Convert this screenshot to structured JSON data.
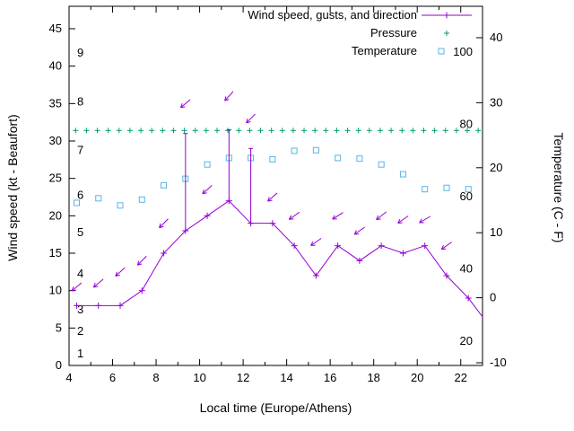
{
  "chart_data": {
    "type": "line",
    "title": "",
    "xlabel": "Local time (Europe/Athens)",
    "ylabel_left": "Wind speed (kt - Beaufort)",
    "ylabel_right": "Temperature (C - F)",
    "x_axis": {
      "min": 4,
      "max": 23,
      "major_ticks": [
        4,
        6,
        8,
        10,
        12,
        14,
        16,
        18,
        20,
        22
      ],
      "minor_step": 1
    },
    "y_left": {
      "min": 0,
      "max": 48,
      "ticks": [
        0,
        5,
        10,
        15,
        20,
        25,
        30,
        35,
        40,
        45
      ]
    },
    "y_right": {
      "ticks_c": [
        -10,
        0,
        10,
        20,
        30,
        40
      ],
      "fahrenheit_inline_labels": [
        20,
        40,
        60,
        80,
        100
      ]
    },
    "beaufort_inline_labels": [
      {
        "bft": 1,
        "kt": 1.3
      },
      {
        "bft": 2,
        "kt": 4.3
      },
      {
        "bft": 3,
        "kt": 7.2
      },
      {
        "bft": 4,
        "kt": 12
      },
      {
        "bft": 5,
        "kt": 17.5
      },
      {
        "bft": 6,
        "kt": 22.5
      },
      {
        "bft": 7,
        "kt": 28.5
      },
      {
        "bft": 8,
        "kt": 35
      },
      {
        "bft": 9,
        "kt": 41.5
      }
    ],
    "legend": [
      {
        "label": "Wind speed, gusts, and direction",
        "marker": "line-plus",
        "color": "#9400d3"
      },
      {
        "label": "Pressure",
        "marker": "plus",
        "color": "#009e73"
      },
      {
        "label": "Temperature",
        "marker": "square",
        "color": "#56b4e9"
      }
    ],
    "series": {
      "wind": {
        "name": "Wind speed, gusts, and direction",
        "color": "#9400d3",
        "x": [
          4.35,
          5.35,
          6.35,
          7.35,
          8.35,
          9.35,
          10.35,
          11.35,
          12.35,
          13.35,
          14.35,
          15.35,
          16.35,
          17.35,
          18.35,
          19.35,
          20.35,
          21.35,
          22.35,
          23.0
        ],
        "speed_kt": [
          8,
          8,
          8,
          10,
          15,
          18,
          20,
          22,
          19,
          19,
          16,
          12,
          16,
          14,
          16,
          15,
          16,
          12,
          9,
          6.5
        ],
        "gust_kt": [
          null,
          null,
          null,
          null,
          null,
          31,
          null,
          31.5,
          29,
          null,
          null,
          null,
          null,
          null,
          null,
          null,
          null,
          null,
          null,
          null
        ],
        "arrows": [
          {
            "x": 4.35,
            "kt": 10.5,
            "angle_deg": 140
          },
          {
            "x": 5.35,
            "kt": 11,
            "angle_deg": 140
          },
          {
            "x": 6.35,
            "kt": 12.5,
            "angle_deg": 138
          },
          {
            "x": 7.35,
            "kt": 14,
            "angle_deg": 135
          },
          {
            "x": 8.35,
            "kt": 19,
            "angle_deg": 135
          },
          {
            "x": 9.35,
            "kt": 35,
            "angle_deg": 140
          },
          {
            "x": 10.35,
            "kt": 23.5,
            "angle_deg": 138
          },
          {
            "x": 11.35,
            "kt": 36,
            "angle_deg": 132
          },
          {
            "x": 12.35,
            "kt": 33,
            "angle_deg": 135
          },
          {
            "x": 13.35,
            "kt": 22.5,
            "angle_deg": 138
          },
          {
            "x": 14.35,
            "kt": 20,
            "angle_deg": 145
          },
          {
            "x": 15.35,
            "kt": 16.5,
            "angle_deg": 145
          },
          {
            "x": 16.35,
            "kt": 20,
            "angle_deg": 148
          },
          {
            "x": 17.35,
            "kt": 18,
            "angle_deg": 145
          },
          {
            "x": 18.35,
            "kt": 20,
            "angle_deg": 142
          },
          {
            "x": 19.35,
            "kt": 19.5,
            "angle_deg": 145
          },
          {
            "x": 20.35,
            "kt": 19.5,
            "angle_deg": 150
          },
          {
            "x": 21.35,
            "kt": 16,
            "angle_deg": 145
          }
        ]
      },
      "pressure": {
        "name": "Pressure",
        "color": "#009e73",
        "x_start": 4.3,
        "x_step": 0.5,
        "x_end": 22.8,
        "level_kt": 31.4
      },
      "temperature": {
        "name": "Temperature",
        "color": "#56b4e9",
        "x": [
          4.35,
          5.35,
          6.35,
          7.35,
          8.35,
          9.35,
          10.35,
          11.35,
          12.35,
          13.35,
          14.35,
          15.35,
          16.35,
          17.35,
          18.35,
          19.35,
          20.35,
          21.35,
          22.35
        ],
        "celsius": [
          14.6,
          15.3,
          14.2,
          15.1,
          17.3,
          18.3,
          20.5,
          21.5,
          21.5,
          21.3,
          22.6,
          22.7,
          21.5,
          21.4,
          20.5,
          19.0,
          16.7,
          16.9,
          16.7
        ]
      }
    }
  }
}
